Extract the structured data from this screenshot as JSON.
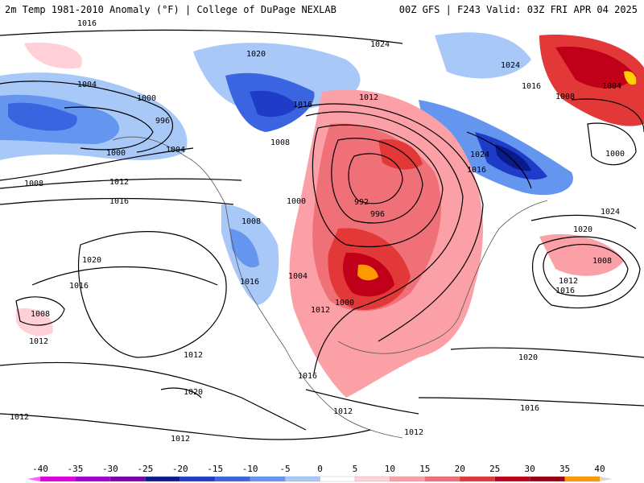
{
  "header": {
    "title_left": "2m Temp 1981-2010 Anomaly (°F) | College of DuPage NEXLAB",
    "title_right": "00Z GFS | F243 Valid: 03Z FRI APR 04 2025"
  },
  "colorbar": {
    "ticks": [
      "-40",
      "-35",
      "-30",
      "-25",
      "-20",
      "-15",
      "-10",
      "-5",
      "0",
      "5",
      "10",
      "15",
      "20",
      "25",
      "30",
      "35",
      "40"
    ],
    "colors": [
      "#e000e0",
      "#a000d0",
      "#7a00b0",
      "#0a1a8a",
      "#1e3cc8",
      "#3a64e0",
      "#6496f0",
      "#a8c8f8",
      "#ffffff",
      "#ffd0d8",
      "#fca0a8",
      "#f07078",
      "#e23838",
      "#c00018",
      "#9a0010",
      "#ff9a00",
      "#ffd000"
    ],
    "end_colors": {
      "low": "#ff60ff",
      "high": "#d8d8d8"
    }
  },
  "isobar_labels": [
    "1016",
    "1020",
    "1004",
    "1000",
    "996",
    "1000",
    "1008",
    "1012",
    "1016",
    "1004",
    "1008",
    "1016",
    "1024",
    "1012",
    "1024",
    "1016",
    "1008",
    "1004",
    "1000",
    "1024",
    "1000",
    "992",
    "996",
    "1008",
    "1000",
    "1004",
    "1016",
    "1020",
    "1016",
    "1008",
    "1012",
    "1012",
    "1020",
    "1016",
    "1012",
    "1012",
    "1016",
    "1012",
    "1012",
    "1024",
    "1020",
    "1008",
    "1012",
    "1016",
    "1020",
    "1016",
    "1012"
  ],
  "colors": {
    "contour": "#000000",
    "coast": "#555555"
  }
}
